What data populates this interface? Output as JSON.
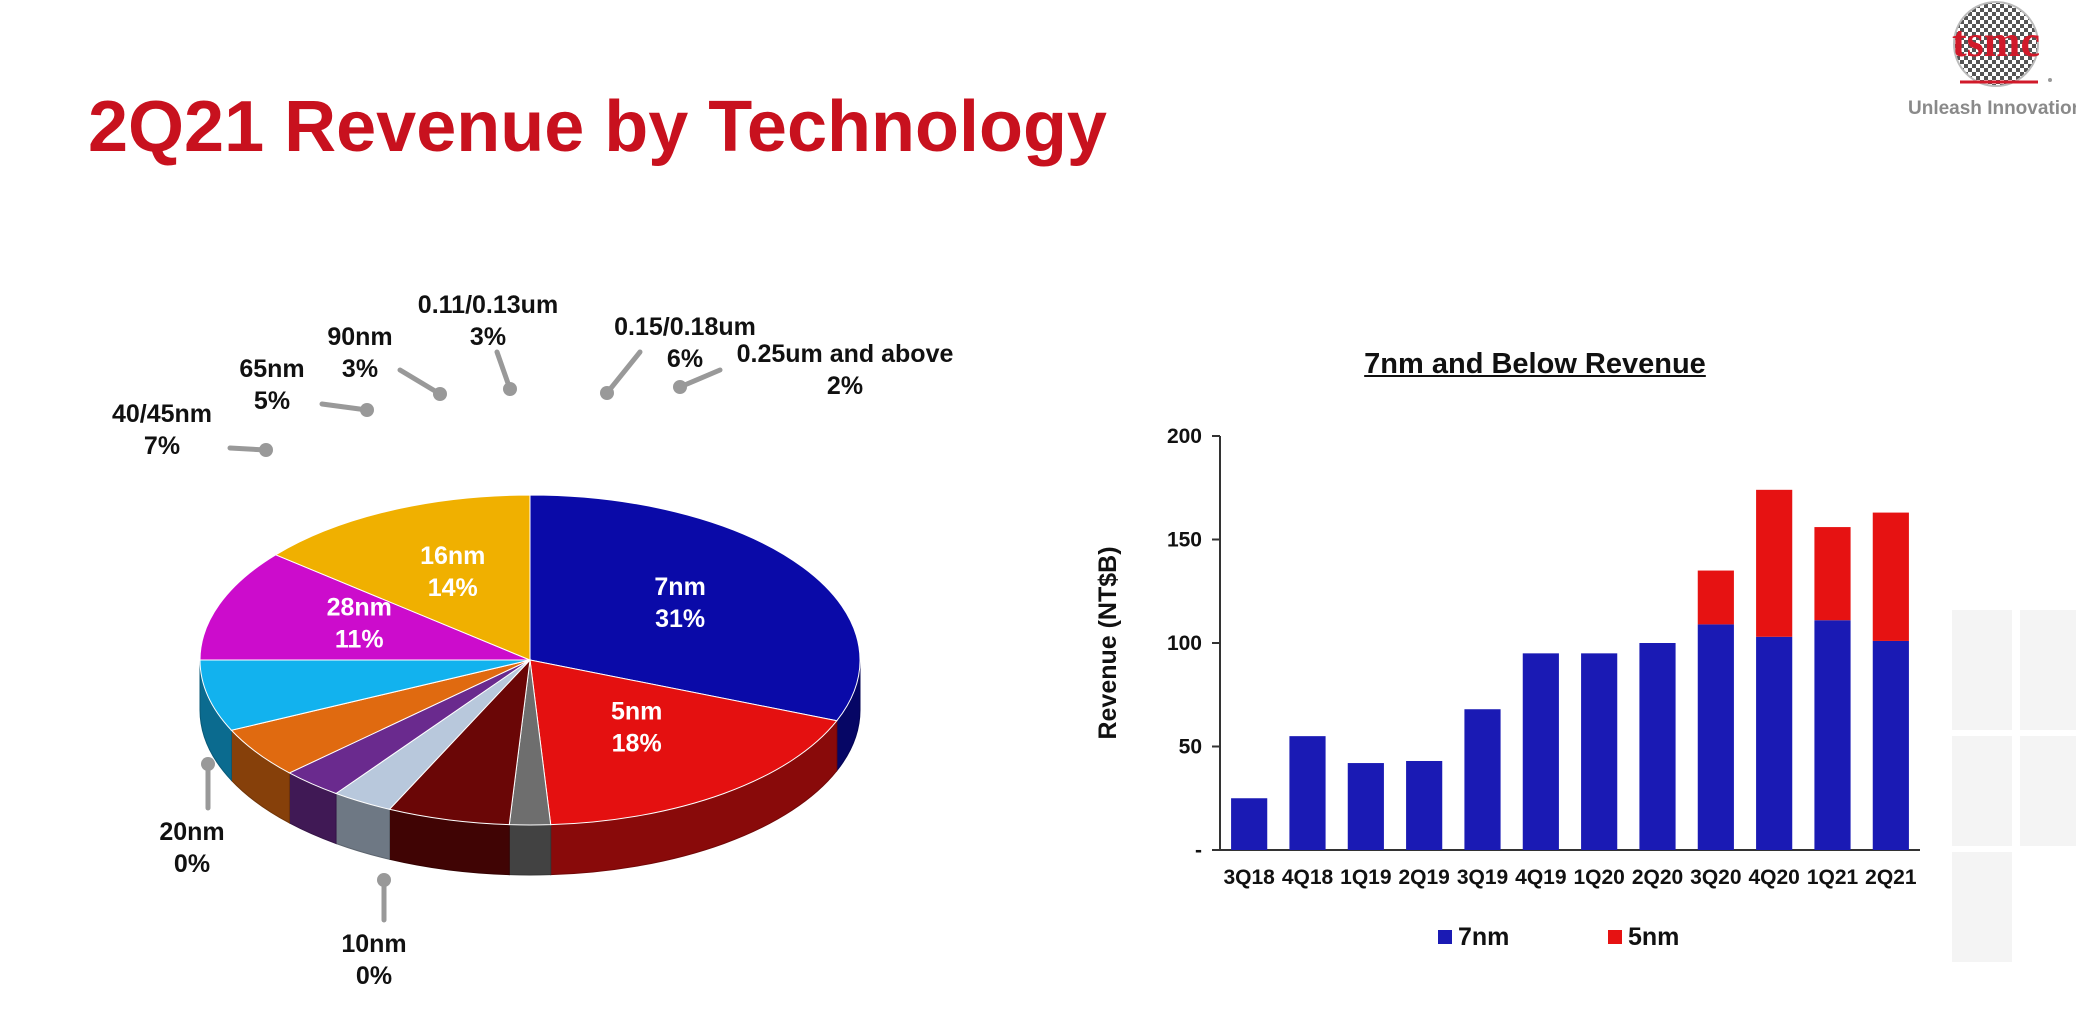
{
  "page": {
    "title": "2Q21 Revenue by Technology",
    "logo_text": "tsmc",
    "logo_tagline": "Unleash Innovation",
    "colors": {
      "title": "#c8111e",
      "logo": "#d11a2a"
    }
  },
  "chart_data": [
    {
      "type": "pie",
      "style": "3d",
      "slices": [
        {
          "label": "7nm",
          "value": 31,
          "display": "31%",
          "color": "#0a0aa8",
          "inside": true
        },
        {
          "label": "5nm",
          "value": 18,
          "display": "18%",
          "color": "#e41010",
          "inside": true
        },
        {
          "label": "0.25um and above",
          "value": 2,
          "display": "2%",
          "color": "#6e6e6e",
          "inside": false
        },
        {
          "label": "0.15/0.18um",
          "value": 6,
          "display": "6%",
          "color": "#6a0606",
          "inside": false
        },
        {
          "label": "0.11/0.13um",
          "value": 3,
          "display": "3%",
          "color": "#b8c8dc",
          "inside": false
        },
        {
          "label": "90nm",
          "value": 3,
          "display": "3%",
          "color": "#6a2a8e",
          "inside": false
        },
        {
          "label": "65nm",
          "value": 5,
          "display": "5%",
          "color": "#e06a10",
          "inside": false
        },
        {
          "label": "40/45nm",
          "value": 7,
          "display": "7%",
          "color": "#12b2ee",
          "inside": false
        },
        {
          "label": "28nm",
          "value": 11,
          "display": "11%",
          "color": "#cc0ccc",
          "inside": true
        },
        {
          "label": "20nm",
          "value": 0,
          "display": "0%",
          "color": "#d49a00",
          "inside": false
        },
        {
          "label": "16nm",
          "value": 14,
          "display": "14%",
          "color": "#f0b000",
          "inside": true
        },
        {
          "label": "10nm",
          "value": 0,
          "display": "0%",
          "color": "#0a0a80",
          "inside": false
        }
      ]
    },
    {
      "type": "bar",
      "stacked": true,
      "title": "7nm and Below Revenue",
      "ylabel": "Revenue (NT$B)",
      "ylim": [
        0,
        200
      ],
      "yticks": [
        0,
        50,
        100,
        150,
        200
      ],
      "ytick_labels": [
        "-",
        "50",
        "100",
        "150",
        "200"
      ],
      "categories": [
        "3Q18",
        "4Q18",
        "1Q19",
        "2Q19",
        "3Q19",
        "4Q19",
        "1Q20",
        "2Q20",
        "3Q20",
        "4Q20",
        "1Q21",
        "2Q21"
      ],
      "series": [
        {
          "name": "7nm",
          "color": "#1a1ab4",
          "values": [
            25,
            55,
            42,
            43,
            68,
            95,
            95,
            100,
            109,
            103,
            111,
            101
          ]
        },
        {
          "name": "5nm",
          "color": "#e61212",
          "values": [
            0,
            0,
            0,
            0,
            0,
            0,
            0,
            0,
            26,
            71,
            45,
            62
          ]
        }
      ],
      "legend_position": "bottom"
    }
  ]
}
